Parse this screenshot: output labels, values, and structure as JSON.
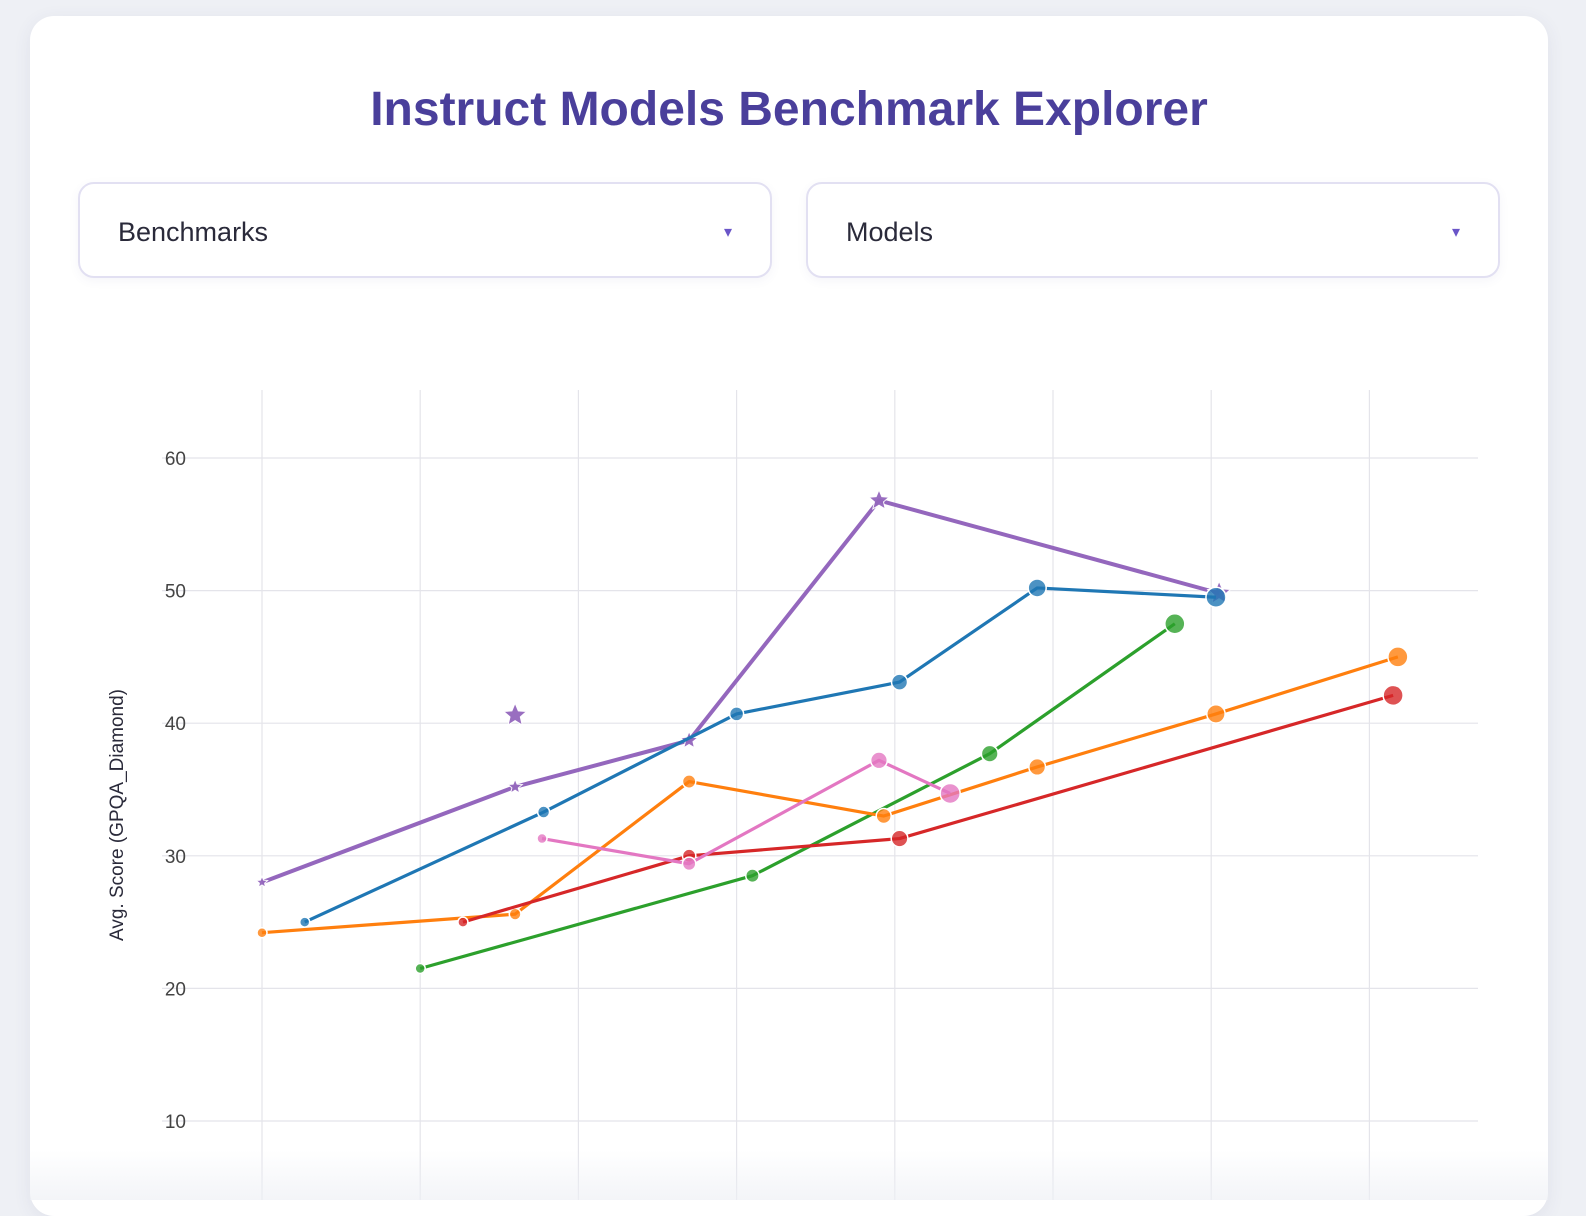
{
  "page": {
    "title": "Instruct Models Benchmark Explorer"
  },
  "controls": {
    "benchmarks": {
      "label": "Benchmarks",
      "arrow": "▾"
    },
    "models": {
      "label": "Models",
      "arrow": "▾"
    }
  },
  "chart_data": {
    "type": "line",
    "ylabel": "Avg. Score (GPQA_Diamond)",
    "xlabel": "",
    "ylim": [
      5,
      65
    ],
    "yticks": [
      10,
      20,
      30,
      40,
      50,
      60
    ],
    "xlim": [
      0,
      7.7
    ],
    "xgrid": [
      0,
      1,
      2,
      3,
      4,
      5,
      6,
      7
    ],
    "grid": true,
    "series": [
      {
        "color": "#9467bd",
        "marker": "star",
        "points": [
          [
            0,
            28
          ],
          [
            1.6,
            35.2
          ],
          [
            2.7,
            38.7
          ],
          [
            3.9,
            56.8
          ],
          [
            6.05,
            49.8
          ]
        ]
      },
      {
        "color": "#1f77b4",
        "marker": "circle",
        "points": [
          [
            0.27,
            25
          ],
          [
            1.78,
            33.3
          ],
          [
            3.0,
            40.7
          ],
          [
            4.03,
            43.1
          ],
          [
            4.9,
            50.2
          ],
          [
            6.03,
            49.5
          ]
        ]
      },
      {
        "color": "#2ca02c",
        "marker": "circle",
        "points": [
          [
            1.0,
            21.5
          ],
          [
            3.1,
            28.5
          ],
          [
            4.6,
            37.7
          ],
          [
            5.77,
            47.5
          ]
        ]
      },
      {
        "color": "#ff7f0e",
        "marker": "circle",
        "points": [
          [
            0,
            24.2
          ],
          [
            1.6,
            25.6
          ],
          [
            2.7,
            35.6
          ],
          [
            3.93,
            33
          ],
          [
            4.9,
            36.7
          ],
          [
            6.03,
            40.7
          ],
          [
            7.18,
            45
          ]
        ]
      },
      {
        "color": "#d62728",
        "marker": "circle",
        "points": [
          [
            1.27,
            25
          ],
          [
            2.7,
            30
          ],
          [
            4.03,
            31.3
          ],
          [
            7.15,
            42.1
          ]
        ]
      },
      {
        "color": "#e377c2",
        "marker": "circle",
        "points": [
          [
            1.77,
            31.3
          ],
          [
            2.7,
            29.4
          ],
          [
            3.9,
            37.2
          ],
          [
            4.35,
            34.7
          ]
        ]
      },
      {
        "color": "#9467bd",
        "marker": "star",
        "standalone": true,
        "points": [
          [
            1.6,
            40.6
          ]
        ]
      }
    ]
  }
}
